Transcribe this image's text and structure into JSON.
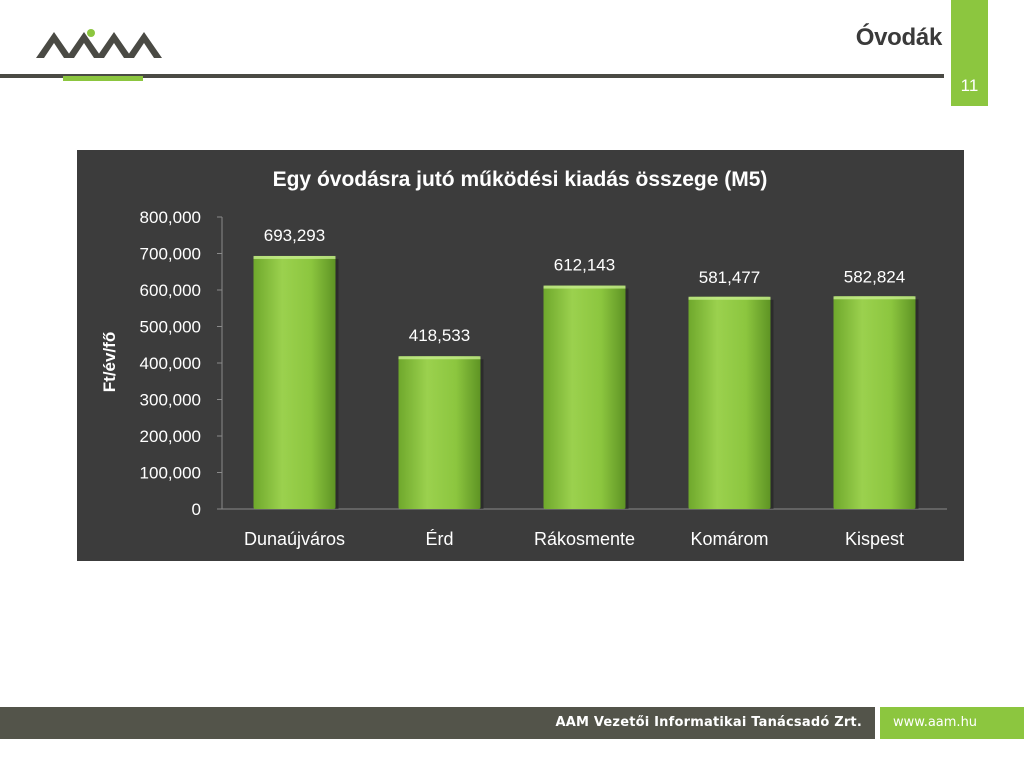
{
  "slide": {
    "title": "Óvodák",
    "page_number": "11"
  },
  "footer": {
    "company": "AAM Vezetői Informatikai Tanácsadó Zrt.",
    "website": "www.aam.hu"
  },
  "colors": {
    "accent": "#8cc63f",
    "chart_background": "#3c3c3c",
    "bar": "#8cc63f",
    "footer_bar": "#53544a"
  },
  "chart_data": {
    "type": "bar",
    "title": "Egy óvodásra jutó működési kiadás összege (M5)",
    "xlabel": "",
    "ylabel": "Ft/év/fő",
    "categories": [
      "Dunaújváros",
      "Érd",
      "Rákosmente",
      "Komárom",
      "Kispest"
    ],
    "values": [
      693293,
      418533,
      612143,
      581477,
      582824
    ],
    "value_labels": [
      "693,293",
      "418,533",
      "612,143",
      "581,477",
      "582,824"
    ],
    "ylim": [
      0,
      800000
    ],
    "yticks": [
      0,
      100000,
      200000,
      300000,
      400000,
      500000,
      600000,
      700000,
      800000
    ],
    "ytick_labels": [
      "0",
      "100,000",
      "200,000",
      "300,000",
      "400,000",
      "500,000",
      "600,000",
      "700,000",
      "800,000"
    ],
    "grid": false,
    "legend": "none"
  }
}
